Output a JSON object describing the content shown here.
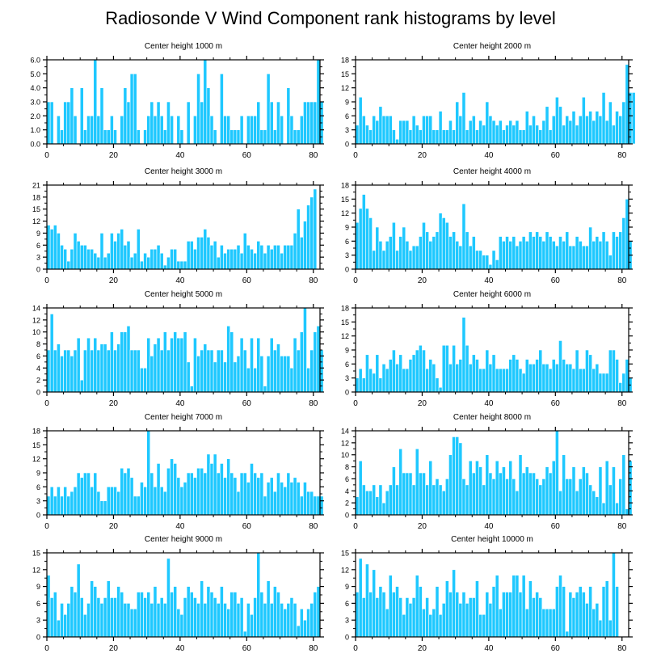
{
  "title": "Radiosonde V Wind Component rank histograms by level",
  "colors": {
    "bar": "#1ec8ff",
    "bar_edge": "#ffffff",
    "axis": "#000000"
  },
  "chart_data": [
    {
      "type": "bar",
      "title": "Center height 1000 m",
      "xlabel": "",
      "ylabel": "",
      "xlim": [
        0,
        82
      ],
      "xticks": [
        0,
        20,
        40,
        60,
        80
      ],
      "ylim": [
        0,
        6
      ],
      "yticks": [
        "0.0",
        "1.0",
        "2.0",
        "3.0",
        "4.0",
        "5.0",
        "6.0"
      ],
      "values": [
        3,
        3,
        0,
        2,
        1,
        3,
        3,
        4,
        2,
        0,
        4,
        1,
        2,
        2,
        6,
        2,
        4,
        1,
        1,
        2,
        1,
        0,
        2,
        4,
        3,
        5,
        5,
        1,
        0,
        1,
        2,
        3,
        2,
        3,
        2,
        1,
        3,
        2,
        0,
        2,
        1,
        0,
        3,
        0,
        2,
        5,
        3,
        6,
        4,
        2,
        1,
        0,
        5,
        2,
        2,
        1,
        1,
        1,
        2,
        0,
        2,
        2,
        2,
        3,
        1,
        1,
        5,
        3,
        1,
        3,
        2,
        0,
        4,
        2,
        1,
        1,
        2,
        3,
        3,
        3,
        3,
        6,
        3
      ]
    },
    {
      "type": "bar",
      "title": "Center height 2000 m",
      "xlabel": "",
      "ylabel": "",
      "xlim": [
        0,
        82
      ],
      "xticks": [
        0,
        20,
        40,
        60,
        80
      ],
      "ylim": [
        0,
        18
      ],
      "yticks": [
        "0",
        "3",
        "6",
        "9",
        "12",
        "15",
        "18"
      ],
      "values": [
        4,
        10,
        6,
        4,
        3,
        6,
        5,
        8,
        6,
        6,
        6,
        3,
        1,
        5,
        5,
        5,
        3,
        6,
        4,
        3,
        6,
        6,
        6,
        3,
        3,
        7,
        3,
        3,
        5,
        3,
        9,
        6,
        11,
        3,
        5,
        6,
        3,
        5,
        4,
        9,
        6,
        5,
        4,
        5,
        3,
        4,
        5,
        4,
        5,
        3,
        3,
        7,
        4,
        6,
        4,
        3,
        5,
        8,
        3,
        6,
        10,
        8,
        4,
        6,
        5,
        7,
        4,
        6,
        10,
        6,
        7,
        5,
        7,
        6,
        11,
        5,
        9,
        4,
        7,
        6,
        9,
        17,
        11,
        11
      ]
    },
    {
      "type": "bar",
      "title": "Center height 3000 m",
      "xlabel": "",
      "ylabel": "",
      "xlim": [
        0,
        82
      ],
      "xticks": [
        0,
        20,
        40,
        60,
        80
      ],
      "ylim": [
        0,
        21
      ],
      "yticks": [
        "0",
        "3",
        "6",
        "9",
        "12",
        "15",
        "18",
        "21"
      ],
      "values": [
        11,
        10,
        11,
        9,
        6,
        5,
        2,
        5,
        9,
        7,
        6,
        6,
        5,
        5,
        4,
        3,
        9,
        3,
        4,
        9,
        7,
        9,
        10,
        6,
        7,
        3,
        4,
        10,
        2,
        4,
        3,
        5,
        5,
        6,
        4,
        1,
        3,
        5,
        5,
        2,
        2,
        2,
        7,
        7,
        5,
        8,
        8,
        10,
        8,
        6,
        7,
        3,
        6,
        4,
        5,
        5,
        5,
        6,
        4,
        9,
        6,
        5,
        4,
        7,
        6,
        4,
        6,
        5,
        6,
        6,
        4,
        6,
        6,
        6,
        9,
        15,
        8,
        12,
        16,
        18,
        20,
        0,
        0
      ]
    },
    {
      "type": "bar",
      "title": "Center height 4000 m",
      "xlabel": "",
      "ylabel": "",
      "xlim": [
        0,
        82
      ],
      "xticks": [
        0,
        20,
        40,
        60,
        80
      ],
      "ylim": [
        0,
        18
      ],
      "yticks": [
        "0",
        "3",
        "6",
        "9",
        "12",
        "15",
        "18"
      ],
      "values": [
        10,
        13,
        16,
        13,
        11,
        4,
        9,
        6,
        4,
        6,
        7,
        10,
        4,
        7,
        9,
        6,
        4,
        5,
        5,
        7,
        10,
        8,
        6,
        7,
        8,
        12,
        11,
        10,
        7,
        8,
        6,
        5,
        14,
        8,
        5,
        7,
        4,
        4,
        3,
        3,
        1,
        4,
        2,
        7,
        6,
        7,
        6,
        7,
        5,
        6,
        7,
        6,
        8,
        7,
        8,
        7,
        6,
        8,
        7,
        6,
        5,
        7,
        6,
        8,
        5,
        5,
        7,
        6,
        5,
        5,
        9,
        6,
        7,
        6,
        8,
        6,
        3,
        8,
        7,
        8,
        11,
        15,
        6,
        0
      ]
    },
    {
      "type": "bar",
      "title": "Center height 5000 m",
      "xlabel": "",
      "ylabel": "",
      "xlim": [
        0,
        82
      ],
      "xticks": [
        0,
        20,
        40,
        60,
        80
      ],
      "ylim": [
        0,
        14
      ],
      "yticks": [
        "0",
        "2",
        "4",
        "6",
        "8",
        "10",
        "12",
        "14"
      ],
      "values": [
        7,
        13,
        7,
        8,
        6,
        7,
        7,
        6,
        7,
        9,
        2,
        7,
        9,
        7,
        9,
        7,
        8,
        8,
        7,
        10,
        7,
        8,
        10,
        10,
        11,
        7,
        7,
        7,
        4,
        4,
        9,
        6,
        8,
        9,
        7,
        10,
        7,
        9,
        10,
        9,
        9,
        10,
        5,
        1,
        9,
        6,
        7,
        8,
        7,
        7,
        5,
        7,
        7,
        5,
        11,
        10,
        5,
        6,
        9,
        7,
        4,
        9,
        4,
        9,
        6,
        1,
        6,
        9,
        7,
        8,
        6,
        6,
        6,
        4,
        9,
        7,
        10,
        14,
        4,
        7,
        10,
        11,
        7
      ]
    },
    {
      "type": "bar",
      "title": "Center height 6000 m",
      "xlabel": "",
      "ylabel": "",
      "xlim": [
        0,
        82
      ],
      "xticks": [
        0,
        20,
        40,
        60,
        80
      ],
      "ylim": [
        0,
        18
      ],
      "yticks": [
        "0",
        "3",
        "6",
        "9",
        "12",
        "15",
        "18"
      ],
      "values": [
        3,
        5,
        3,
        8,
        5,
        4,
        8,
        3,
        6,
        5,
        7,
        9,
        6,
        8,
        5,
        5,
        7,
        8,
        9,
        10,
        9,
        5,
        7,
        6,
        3,
        1,
        10,
        10,
        6,
        10,
        6,
        7,
        16,
        10,
        6,
        8,
        7,
        5,
        5,
        9,
        6,
        8,
        5,
        5,
        5,
        5,
        7,
        8,
        7,
        5,
        4,
        7,
        6,
        6,
        7,
        9,
        6,
        6,
        5,
        7,
        6,
        11,
        7,
        6,
        6,
        5,
        9,
        5,
        5,
        9,
        8,
        5,
        6,
        4,
        4,
        4,
        9,
        9,
        7,
        2,
        4,
        7,
        3
      ]
    },
    {
      "type": "bar",
      "title": "Center height 7000 m",
      "xlabel": "",
      "ylabel": "",
      "xlim": [
        0,
        82
      ],
      "xticks": [
        0,
        20,
        40,
        60,
        80
      ],
      "ylim": [
        0,
        18
      ],
      "yticks": [
        "0",
        "3",
        "6",
        "9",
        "12",
        "15",
        "18"
      ],
      "values": [
        4,
        6,
        4,
        6,
        4,
        6,
        4,
        5,
        6,
        9,
        8,
        9,
        9,
        6,
        9,
        5,
        3,
        3,
        6,
        6,
        6,
        5,
        10,
        9,
        10,
        8,
        4,
        4,
        7,
        6,
        18,
        9,
        6,
        11,
        6,
        5,
        10,
        12,
        11,
        8,
        6,
        7,
        9,
        9,
        8,
        10,
        10,
        9,
        13,
        11,
        13,
        9,
        11,
        8,
        12,
        9,
        8,
        5,
        9,
        9,
        7,
        11,
        9,
        8,
        9,
        4,
        7,
        8,
        5,
        9,
        7,
        6,
        9,
        7,
        8,
        7,
        4,
        7,
        5,
        5,
        4,
        4,
        4
      ]
    },
    {
      "type": "bar",
      "title": "Center height 8000 m",
      "xlabel": "",
      "ylabel": "",
      "xlim": [
        0,
        82
      ],
      "xticks": [
        0,
        20,
        40,
        60,
        80
      ],
      "ylim": [
        0,
        14
      ],
      "yticks": [
        "0",
        "2",
        "4",
        "6",
        "8",
        "10",
        "12",
        "14"
      ],
      "values": [
        3,
        9,
        5,
        4,
        4,
        5,
        3,
        5,
        2,
        4,
        5,
        8,
        5,
        11,
        7,
        7,
        7,
        5,
        11,
        7,
        7,
        5,
        9,
        5,
        6,
        5,
        4,
        6,
        10,
        13,
        13,
        12,
        6,
        5,
        9,
        7,
        9,
        8,
        5,
        10,
        7,
        6,
        9,
        7,
        8,
        6,
        9,
        6,
        4,
        10,
        7,
        8,
        7,
        7,
        6,
        5,
        6,
        8,
        7,
        9,
        14,
        4,
        10,
        6,
        6,
        8,
        4,
        6,
        8,
        7,
        5,
        4,
        3,
        8,
        2,
        9,
        5,
        8,
        2,
        6,
        10,
        1,
        9
      ]
    },
    {
      "type": "bar",
      "title": "Center height 9000 m",
      "xlabel": "",
      "ylabel": "",
      "xlim": [
        0,
        82
      ],
      "xticks": [
        0,
        20,
        40,
        60,
        80
      ],
      "ylim": [
        0,
        15
      ],
      "yticks": [
        "0",
        "3",
        "6",
        "9",
        "12",
        "15"
      ],
      "values": [
        11,
        7,
        8,
        3,
        6,
        4,
        6,
        9,
        8,
        13,
        7,
        4,
        6,
        10,
        9,
        7,
        6,
        7,
        10,
        7,
        7,
        9,
        8,
        6,
        6,
        5,
        5,
        8,
        8,
        7,
        8,
        6,
        9,
        6,
        7,
        6,
        14,
        8,
        9,
        5,
        4,
        7,
        9,
        8,
        7,
        6,
        10,
        6,
        9,
        8,
        7,
        6,
        9,
        6,
        5,
        8,
        8,
        6,
        7,
        1,
        6,
        4,
        7,
        15,
        8,
        6,
        10,
        6,
        9,
        8,
        6,
        5,
        6,
        7,
        6,
        2,
        5,
        3,
        5,
        6,
        8,
        9
      ]
    },
    {
      "type": "bar",
      "title": "Center height 10000 m",
      "xlabel": "",
      "ylabel": "",
      "xlim": [
        0,
        82
      ],
      "xticks": [
        0,
        20,
        40,
        60,
        80
      ],
      "ylim": [
        0,
        15
      ],
      "yticks": [
        "0",
        "3",
        "6",
        "9",
        "12",
        "15"
      ],
      "values": [
        8,
        14,
        7,
        13,
        8,
        12,
        7,
        9,
        8,
        5,
        11,
        8,
        9,
        7,
        4,
        7,
        6,
        7,
        11,
        9,
        5,
        7,
        4,
        5,
        9,
        4,
        6,
        10,
        8,
        12,
        8,
        6,
        8,
        6,
        7,
        7,
        10,
        4,
        4,
        8,
        6,
        9,
        11,
        5,
        8,
        8,
        8,
        11,
        11,
        8,
        11,
        5,
        10,
        7,
        8,
        7,
        5,
        5,
        5,
        5,
        9,
        11,
        9,
        1,
        8,
        7,
        8,
        9,
        8,
        6,
        9,
        5,
        6,
        3,
        9,
        10,
        3,
        15,
        9
      ]
    }
  ]
}
